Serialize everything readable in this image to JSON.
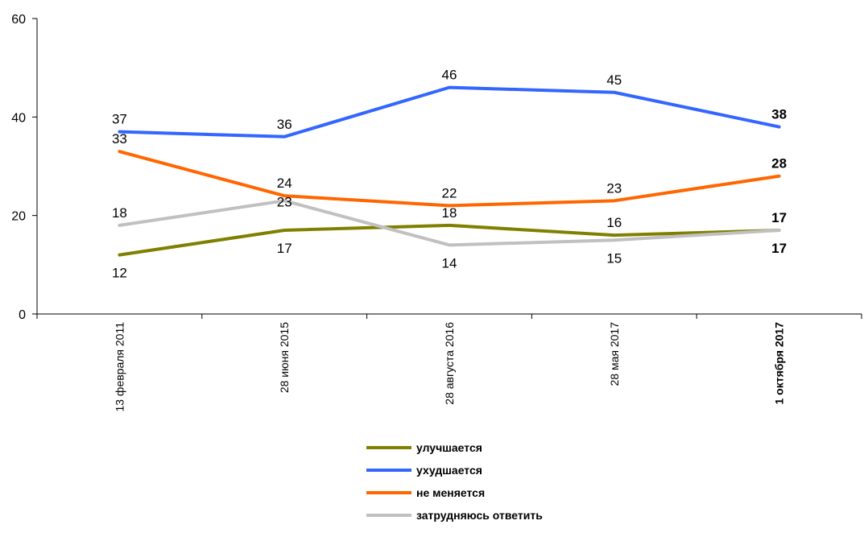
{
  "chart_data": {
    "type": "line",
    "categories": [
      "13 февраля 2011",
      "28 июня 2015",
      "28 августа 2016",
      "28 мая 2017",
      "1 октября 2017"
    ],
    "ylim": [
      0,
      60
    ],
    "yticks": [
      0,
      20,
      40,
      60
    ],
    "grid": false,
    "legend_position": "bottom",
    "bold_last_category": true,
    "series": [
      {
        "name": "улучшается",
        "color": "#808000",
        "values": [
          12,
          17,
          18,
          16,
          17
        ],
        "label_pos": [
          "below",
          "below",
          "above",
          "above",
          "above"
        ]
      },
      {
        "name": "ухудшается",
        "color": "#3366ff",
        "values": [
          37,
          36,
          46,
          45,
          38
        ],
        "label_pos": [
          "above",
          "above",
          "above",
          "above",
          "above"
        ]
      },
      {
        "name": "не меняется",
        "color": "#ff6600",
        "values": [
          33,
          24,
          22,
          23,
          28
        ],
        "label_pos": [
          "above",
          "above",
          "above",
          "above",
          "above"
        ]
      },
      {
        "name": "затрудняюсь ответить",
        "color": "#c0c0c0",
        "values": [
          18,
          23,
          14,
          15,
          17
        ],
        "label_pos": [
          "above",
          "center",
          "below",
          "below",
          "below"
        ]
      }
    ]
  }
}
